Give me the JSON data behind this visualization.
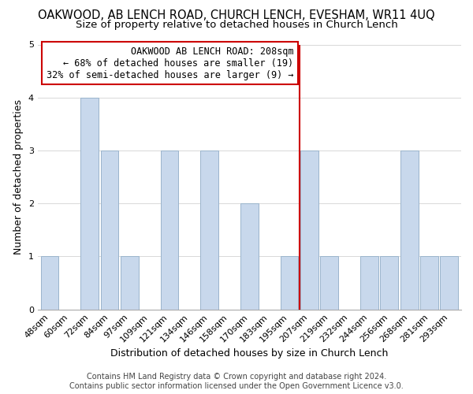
{
  "title": "OAKWOOD, AB LENCH ROAD, CHURCH LENCH, EVESHAM, WR11 4UQ",
  "subtitle": "Size of property relative to detached houses in Church Lench",
  "xlabel": "Distribution of detached houses by size in Church Lench",
  "ylabel": "Number of detached properties",
  "bar_labels": [
    "48sqm",
    "60sqm",
    "72sqm",
    "84sqm",
    "97sqm",
    "109sqm",
    "121sqm",
    "134sqm",
    "146sqm",
    "158sqm",
    "170sqm",
    "183sqm",
    "195sqm",
    "207sqm",
    "219sqm",
    "232sqm",
    "244sqm",
    "256sqm",
    "268sqm",
    "281sqm",
    "293sqm"
  ],
  "bar_values": [
    1,
    0,
    4,
    3,
    1,
    0,
    3,
    0,
    3,
    0,
    2,
    0,
    1,
    3,
    1,
    0,
    1,
    1,
    3,
    1,
    1
  ],
  "bar_color": "#c8d8ec",
  "bar_edge_color": "#9ab4cc",
  "highlight_bar_index": 13,
  "vline_color": "#cc0000",
  "vline_x": 13,
  "ylim": [
    0,
    5
  ],
  "yticks": [
    0,
    1,
    2,
    3,
    4,
    5
  ],
  "annotation_line1": "OAKWOOD AB LENCH ROAD: 208sqm",
  "annotation_line2": "← 68% of detached houses are smaller (19)",
  "annotation_line3": "32% of semi-detached houses are larger (9) →",
  "footer_line1": "Contains HM Land Registry data © Crown copyright and database right 2024.",
  "footer_line2": "Contains public sector information licensed under the Open Government Licence v3.0.",
  "title_fontsize": 10.5,
  "subtitle_fontsize": 9.5,
  "axis_label_fontsize": 9,
  "tick_fontsize": 8,
  "annotation_fontsize": 8.5,
  "footer_fontsize": 7,
  "background_color": "#ffffff",
  "grid_color": "#d8d8d8"
}
